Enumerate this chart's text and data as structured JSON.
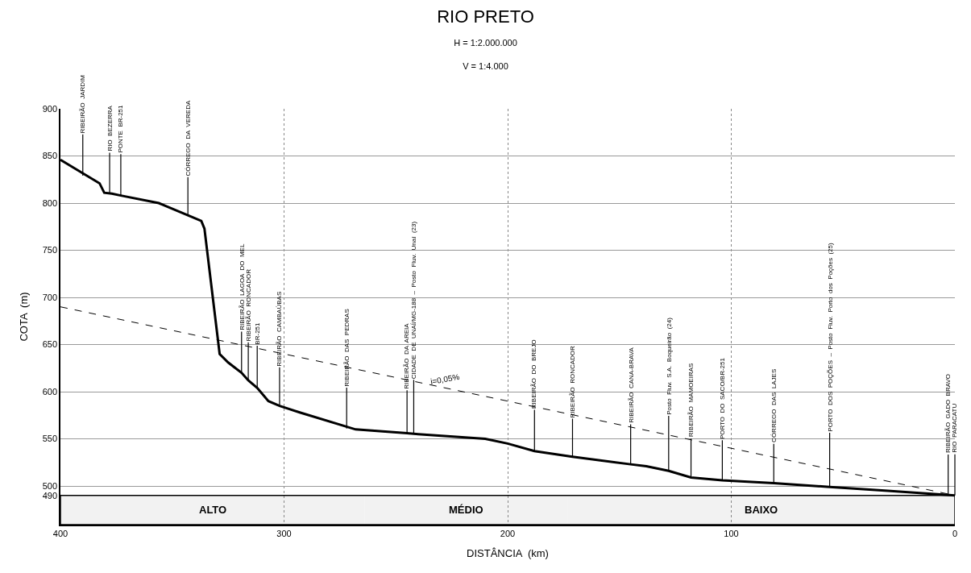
{
  "chart_data": {
    "type": "line",
    "title": "RIO PRETO",
    "subtitle": "H = 1:2.000.000\nV = 1:4.000",
    "xlabel": "DISTÂNCIA  (km)",
    "ylabel": "COTA  (m)",
    "xlim": [
      400,
      0
    ],
    "xticks": [
      400,
      300,
      200,
      100,
      0
    ],
    "ylim": [
      459,
      900
    ],
    "yticks": [
      490,
      500,
      550,
      600,
      650,
      700,
      750,
      800,
      850,
      900
    ],
    "grid": true,
    "legend": false,
    "series": [
      {
        "color": "#000000",
        "line_style": "solid",
        "x": [
          400,
          382.5,
          380.4,
          377,
          373,
          356,
          343,
          337,
          335.6,
          328.8,
          325,
          319,
          316,
          312,
          307,
          302,
          293,
          268,
          245,
          240,
          210,
          200,
          188,
          171,
          145,
          138,
          128,
          118,
          104,
          81,
          56,
          30,
          0
        ],
        "values": [
          846,
          821,
          811,
          810,
          808,
          800,
          787,
          781,
          773,
          640,
          631,
          620,
          612,
          604,
          590,
          585,
          578,
          560,
          556,
          555,
          550,
          545,
          537,
          531,
          523,
          521,
          516,
          509,
          506,
          503,
          499,
          495,
          490
        ]
      },
      {
        "color": "#000000",
        "line_style": "dashed",
        "name": "i=0,05%",
        "x": [
          400,
          0
        ],
        "values": [
          690,
          490
        ]
      }
    ],
    "bands": [
      {
        "axis": "x",
        "from": 400,
        "to": 264,
        "label": "ALTO",
        "color": "#f2f2f2"
      },
      {
        "axis": "x",
        "from": 264,
        "to": 173,
        "label": "MÉDIO",
        "color": "#f2f2f2"
      },
      {
        "axis": "x",
        "from": 173,
        "to": 0,
        "label": "BAIXO",
        "color": "#f2f2f2"
      }
    ],
    "annotations": [
      {
        "text": "RIBEIRÃO  JARDIM",
        "x": 390,
        "y": 829
      },
      {
        "text": "RIO  BEZERRA",
        "x": 378,
        "y": 810
      },
      {
        "text": "PONTE  BR-251",
        "x": 373,
        "y": 808
      },
      {
        "text": "CÓRREGO  DA  VEREDA",
        "x": 343,
        "y": 787
      },
      {
        "text": "RIBEIRÃO  LAGOA  DO  MEL",
        "x": 319,
        "y": 620
      },
      {
        "text": "RIBEIRÃO  RONCADOR",
        "x": 316,
        "y": 612
      },
      {
        "text": "BR-251",
        "x": 312,
        "y": 604
      },
      {
        "text": "RIBEIRÃO  CAMBAÚBAS",
        "x": 302,
        "y": 585
      },
      {
        "text": "RIBEIRÃO  DAS  PEDRAS",
        "x": 272,
        "y": 561
      },
      {
        "text": "RIBEIRÃO  DA  AREIA",
        "x": 245,
        "y": 556
      },
      {
        "text": "CIDADE  DE  UNAÍ/MG-188  –  Posto  Fluv.  Unaí  (23)",
        "x": 242,
        "y": 555
      },
      {
        "text": "RIBEIRÃO  DO  BREJO",
        "x": 188,
        "y": 537
      },
      {
        "text": "RIBEIRÃO  RONCADOR",
        "x": 171,
        "y": 531
      },
      {
        "text": "RIBEIRÃO  CANA-BRAVA",
        "x": 145,
        "y": 523
      },
      {
        "text": "Posto  Fluv.  S.A.  Boqueirão  (24)",
        "x": 128,
        "y": 516
      },
      {
        "text": "RIBEIRÃO  MAMOEIRAS",
        "x": 118,
        "y": 509
      },
      {
        "text": "PORTO  DO  SACO/BR-251",
        "x": 104,
        "y": 506
      },
      {
        "text": "CÓRREGO  DAS  LAJES",
        "x": 81,
        "y": 503
      },
      {
        "text": "PORTO  DOS  POÇÕES  –  Posto  Fluv.  Porto  dos  Poções  (25)",
        "x": 56,
        "y": 499
      },
      {
        "text": "RIBEIRÃO  GADO  BRAVO",
        "x": 3,
        "y": 491
      },
      {
        "text": "RIO  PARACATU",
        "x": 0,
        "y": 490
      }
    ]
  }
}
